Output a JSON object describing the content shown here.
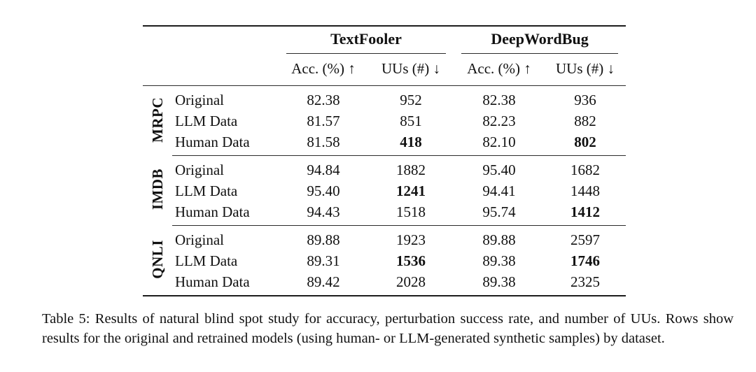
{
  "colors": {
    "background": "#ffffff",
    "text": "#111111",
    "rule": "#2b2b2b"
  },
  "table": {
    "caption": "Table 5: Results of natural blind spot study for accuracy, perturbation success rate, and number of UUs. Rows show results for the original and retrained models (using human- or LLM-generated synthetic samples) by dataset.",
    "col_groups": [
      {
        "label": "TextFooler"
      },
      {
        "label": "DeepWordBug"
      }
    ],
    "sub_headers": [
      "Acc. (%) ↑",
      "UUs (#) ↓",
      "Acc. (%) ↑",
      "UUs (#) ↓"
    ],
    "groups": [
      {
        "dataset": "MRPC",
        "rows": [
          {
            "label": "Original",
            "values": [
              "82.38",
              "952",
              "82.38",
              "936"
            ],
            "bold": [
              false,
              false,
              false,
              false
            ]
          },
          {
            "label": "LLM Data",
            "values": [
              "81.57",
              "851",
              "82.23",
              "882"
            ],
            "bold": [
              false,
              false,
              false,
              false
            ]
          },
          {
            "label": "Human Data",
            "values": [
              "81.58",
              "418",
              "82.10",
              "802"
            ],
            "bold": [
              false,
              true,
              false,
              true
            ]
          }
        ]
      },
      {
        "dataset": "IMDB",
        "rows": [
          {
            "label": "Original",
            "values": [
              "94.84",
              "1882",
              "95.40",
              "1682"
            ],
            "bold": [
              false,
              false,
              false,
              false
            ]
          },
          {
            "label": "LLM Data",
            "values": [
              "95.40",
              "1241",
              "94.41",
              "1448"
            ],
            "bold": [
              false,
              true,
              false,
              false
            ]
          },
          {
            "label": "Human Data",
            "values": [
              "94.43",
              "1518",
              "95.74",
              "1412"
            ],
            "bold": [
              false,
              false,
              false,
              true
            ]
          }
        ]
      },
      {
        "dataset": "QNLI",
        "rows": [
          {
            "label": "Original",
            "values": [
              "89.88",
              "1923",
              "89.88",
              "2597"
            ],
            "bold": [
              false,
              false,
              false,
              false
            ]
          },
          {
            "label": "LLM Data",
            "values": [
              "89.31",
              "1536",
              "89.38",
              "1746"
            ],
            "bold": [
              false,
              true,
              false,
              true
            ]
          },
          {
            "label": "Human Data",
            "values": [
              "89.42",
              "2028",
              "89.38",
              "2325"
            ],
            "bold": [
              false,
              false,
              false,
              false
            ]
          }
        ]
      }
    ]
  }
}
